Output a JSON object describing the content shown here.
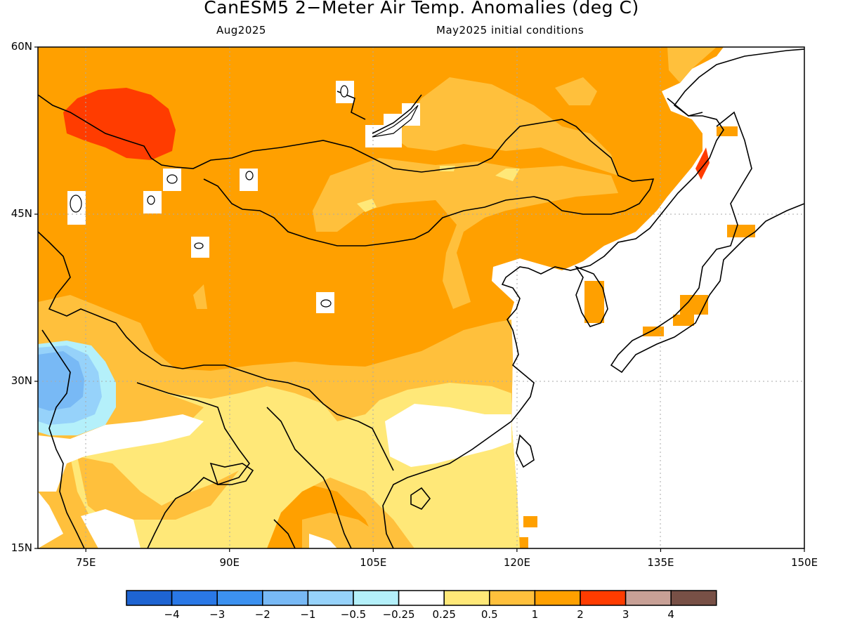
{
  "header": {
    "title": "CanESM5 2−Meter Air Temp. Anomalies (deg C)",
    "month": "Aug2025",
    "init": "May2025 initial conditions"
  },
  "map": {
    "lon_range": [
      70,
      150
    ],
    "lat_range": [
      15,
      60
    ],
    "lat_ticks": [
      {
        "value": 15,
        "label": "15N"
      },
      {
        "value": 30,
        "label": "30N"
      },
      {
        "value": 45,
        "label": "45N"
      },
      {
        "value": 60,
        "label": "60N"
      }
    ],
    "lon_ticks": [
      {
        "value": 75,
        "label": "75E"
      },
      {
        "value": 90,
        "label": "90E"
      },
      {
        "value": 105,
        "label": "105E"
      },
      {
        "value": 120,
        "label": "120E"
      },
      {
        "value": 135,
        "label": "135E"
      },
      {
        "value": 150,
        "label": "150E"
      }
    ]
  },
  "colorbar": {
    "colors": [
      "#1e64d2",
      "#2a78e6",
      "#3c91f0",
      "#78b9f5",
      "#96d2fa",
      "#b4f0fa",
      "#ffffff",
      "#ffe878",
      "#ffc03c",
      "#ffa000",
      "#ff3c00",
      "#c8a096",
      "#785046"
    ],
    "labels": [
      "−4",
      "−3",
      "−2",
      "−1",
      "−0.5",
      "−0.25",
      "0.25",
      "0.5",
      "1",
      "2",
      "3",
      "4"
    ]
  }
}
